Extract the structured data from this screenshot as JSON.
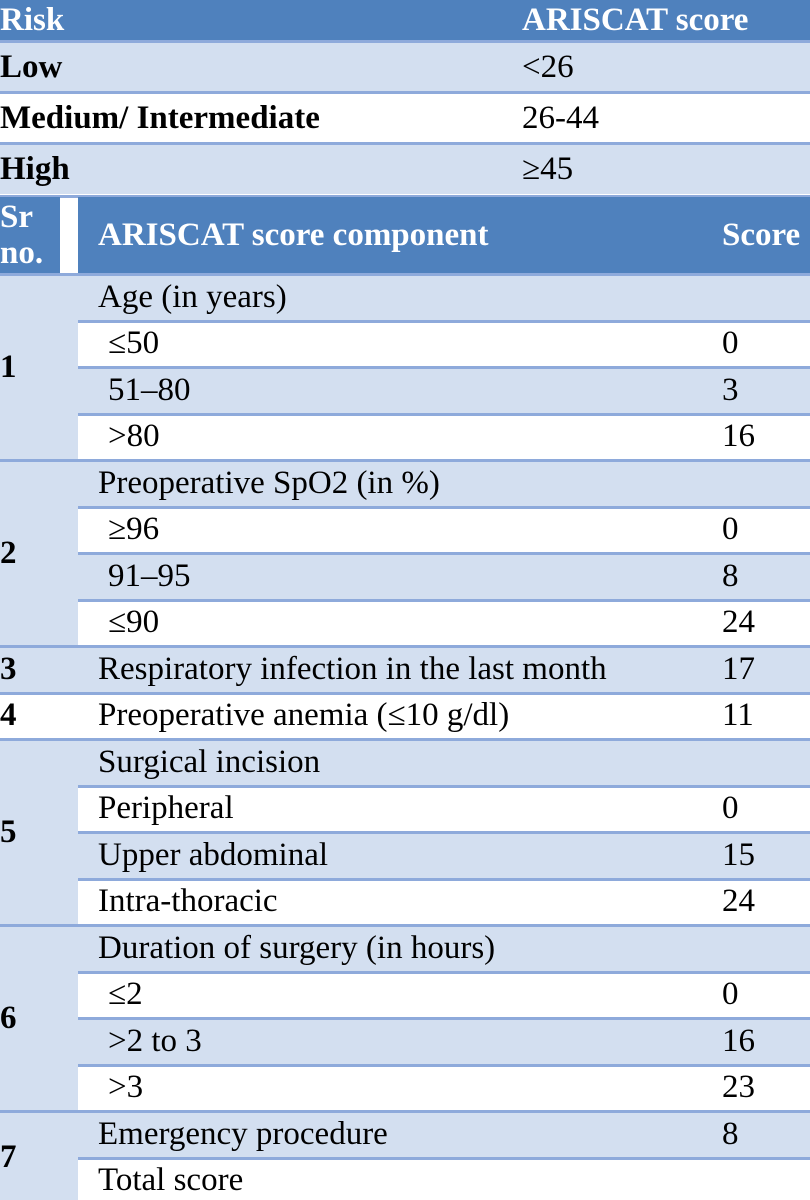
{
  "risk_table": {
    "header": [
      "Risk",
      "ARISCAT score"
    ],
    "rows": [
      [
        "Low",
        "<26"
      ],
      [
        "Medium/ Intermediate",
        "26-44"
      ],
      [
        "High",
        "≥45"
      ]
    ]
  },
  "component_table": {
    "header": [
      "Sr no.",
      "ARISCAT score component",
      "Score"
    ],
    "groups": [
      {
        "sr": "1",
        "items": [
          {
            "label": "Age (in years)"
          },
          {
            "label": "≤50",
            "score": 0
          },
          {
            "label": "51–80",
            "score": 3
          },
          {
            "label": ">80",
            "score": 16
          }
        ]
      },
      {
        "sr": "2",
        "items": [
          {
            "label": "Preoperative SpO2 (in %)"
          },
          {
            "label": "≥96",
            "score": 0
          },
          {
            "label": "91–95",
            "score": 8
          },
          {
            "label": "≤90",
            "score": 24
          }
        ]
      },
      {
        "sr": "3",
        "items": [
          {
            "label": "Respiratory infection in the last month",
            "score": 17
          }
        ]
      },
      {
        "sr": "4",
        "items": [
          {
            "label": "Preoperative anemia (≤10 g/dl)",
            "score": 11
          }
        ]
      },
      {
        "sr": "5",
        "items": [
          {
            "label": "Surgical incision"
          },
          {
            "label": "Peripheral",
            "score": 0
          },
          {
            "label": "Upper abdominal",
            "score": 15
          },
          {
            "label": "Intra-thoracic",
            "score": 24
          }
        ]
      },
      {
        "sr": "6",
        "items": [
          {
            "label": "Duration of surgery (in hours)"
          },
          {
            "label": "≤2",
            "score": 0
          },
          {
            "label": ">2 to 3",
            "score": 16
          },
          {
            "label": ">3",
            "score": 23
          }
        ]
      },
      {
        "sr": "7",
        "items": [
          {
            "label": "Emergency procedure",
            "score": 8
          },
          {
            "label": "Total score"
          }
        ]
      }
    ]
  }
}
